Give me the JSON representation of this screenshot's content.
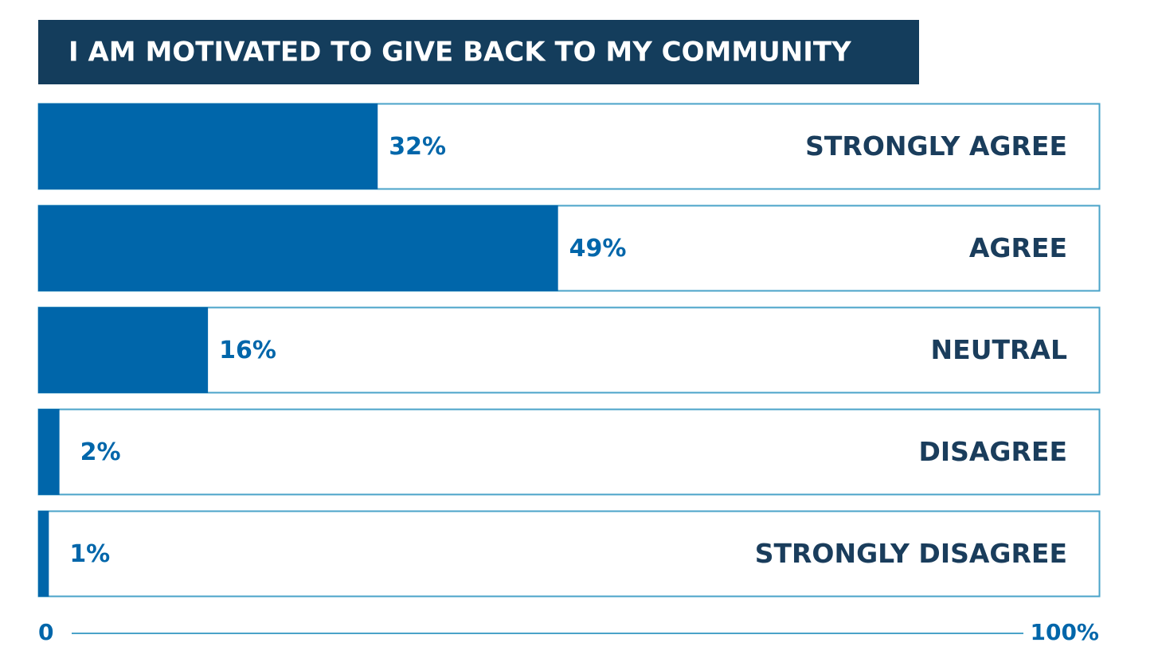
{
  "chart_data": {
    "type": "hbar",
    "title": "I AM MOTIVATED TO GIVE BACK TO MY COMMUNITY",
    "categories": [
      "STRONGLY AGREE",
      "AGREE",
      "NEUTRAL",
      "DISAGREE",
      "STRONGLY DISAGREE"
    ],
    "values": [
      32,
      49,
      16,
      2,
      1
    ],
    "value_labels": [
      "32%",
      "49%",
      "16%",
      "2%",
      "1%"
    ],
    "color": "#0066aa",
    "xlim": [
      0,
      100
    ],
    "xticks": [
      0,
      {
        "value": 100,
        "label": "100%"
      }
    ]
  }
}
